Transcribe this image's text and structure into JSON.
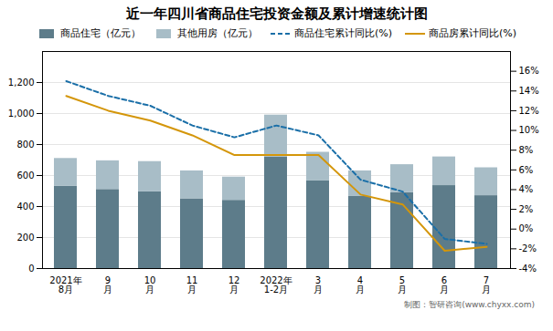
{
  "chart_data": {
    "type": "bar",
    "title": "近一年四川省商品住宅投资金额及累计增速统计图",
    "categories": [
      "2021年\n8月",
      "9\n月",
      "10\n月",
      "11\n月",
      "12\n月",
      "2022年\n1-2月",
      "3\n月",
      "4\n月",
      "5\n月",
      "6\n月",
      "7\n月"
    ],
    "stacked": true,
    "grid": true,
    "legend": "top",
    "ylim": [
      0,
      1400
    ],
    "yticks": [
      0,
      200,
      400,
      600,
      800,
      {
        "value": 1000,
        "label": "1,000"
      },
      {
        "value": 1200,
        "label": "1,200"
      }
    ],
    "y2lim": [
      -4,
      18
    ],
    "y2ticks": [
      {
        "value": -4,
        "label": "-4%"
      },
      {
        "value": -2,
        "label": "-2%"
      },
      {
        "value": 0,
        "label": "0%"
      },
      {
        "value": 2,
        "label": "2%"
      },
      {
        "value": 4,
        "label": "4%"
      },
      {
        "value": 6,
        "label": "6%"
      },
      {
        "value": 8,
        "label": "8%"
      },
      {
        "value": 10,
        "label": "10%"
      },
      {
        "value": 12,
        "label": "12%"
      },
      {
        "value": 14,
        "label": "14%"
      },
      {
        "value": 16,
        "label": "16%"
      }
    ],
    "series": [
      {
        "name": "商品住宅（亿元）",
        "type": "bar",
        "color": "#5d7c8a",
        "values": [
          530,
          510,
          495,
          450,
          440,
          720,
          565,
          465,
          490,
          535,
          470
        ]
      },
      {
        "name": "其他用房（亿元）",
        "type": "bar",
        "color": "#a8bdc7",
        "values": [
          180,
          185,
          195,
          180,
          150,
          270,
          185,
          165,
          180,
          185,
          180
        ]
      },
      {
        "name": "商品住宅累计同比(%)",
        "type": "line",
        "axis": "y2",
        "color": "#1a6fa8",
        "line_style": "dashed",
        "values": [
          15.0,
          13.5,
          12.5,
          10.5,
          9.3,
          10.5,
          9.5,
          5.0,
          3.8,
          -1.0,
          -1.5
        ]
      },
      {
        "name": "商品房累计同比(%)",
        "type": "line",
        "axis": "y2",
        "color": "#d4960a",
        "line_style": "solid",
        "values": [
          13.5,
          12.0,
          11.0,
          9.5,
          7.5,
          7.5,
          7.5,
          3.5,
          2.5,
          -2.2,
          -1.8
        ]
      }
    ],
    "annotations": [
      "制图：智研咨询(www.chyxx.com)"
    ]
  }
}
